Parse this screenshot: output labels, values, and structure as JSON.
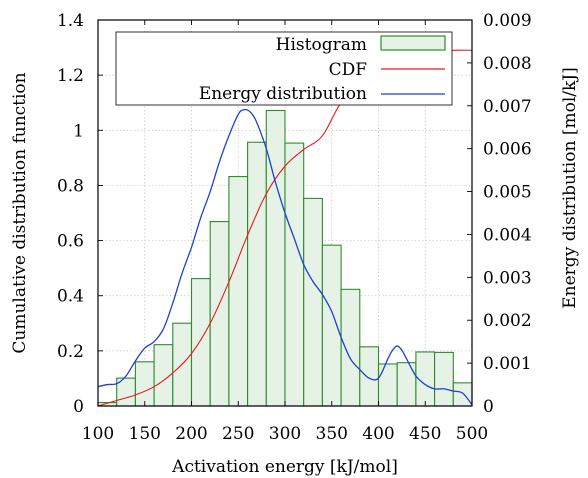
{
  "chart_data": {
    "type": "bar",
    "title": "",
    "xlabel": "Activation energy [kJ/mol]",
    "ylabel_left": "Cumulative distribution function",
    "ylabel_right": "Energy distribution [mol/kJ]",
    "xlim": [
      100,
      500
    ],
    "ylim_left": [
      0,
      1.4
    ],
    "ylim_right": [
      0,
      0.009
    ],
    "grid": true,
    "legend_position": "top-right",
    "xticks": [
      "100",
      "150",
      "200",
      "250",
      "300",
      "350",
      "400",
      "450",
      "500"
    ],
    "yticks_left": [
      "0",
      "0.2",
      "0.4",
      "0.6",
      "0.8",
      "1",
      "1.2",
      "1.4"
    ],
    "yticks_right": [
      "0",
      "0.001",
      "0.002",
      "0.003",
      "0.004",
      "0.005",
      "0.006",
      "0.007",
      "0.008",
      "0.009"
    ],
    "legend": {
      "histogram": "Histogram",
      "cdf": "CDF",
      "energy": "Energy distribution"
    },
    "colors": {
      "histogram": "#2e8b2e",
      "histogram_fill": "#e6f2e6",
      "cdf": "#e31a1c",
      "energy": "#1f3fd6",
      "grid": "#b5b5b5"
    },
    "histogram": {
      "bin_edges": [
        100,
        120,
        140,
        160,
        180,
        200,
        220,
        240,
        260,
        280,
        300,
        320,
        340,
        360,
        380,
        400,
        420,
        440,
        460,
        480,
        500
      ],
      "values_right": [
        8e-05,
        0.00065,
        0.00103,
        0.00143,
        0.00193,
        0.00297,
        0.0043,
        0.00535,
        0.00615,
        0.00689,
        0.00613,
        0.00484,
        0.00375,
        0.00272,
        0.00138,
        0.00098,
        0.00101,
        0.00126,
        0.00125,
        0.00054
      ]
    },
    "cdf": {
      "x": [
        100,
        120,
        140,
        160,
        180,
        200,
        220,
        240,
        260,
        280,
        300,
        320,
        340,
        360,
        380,
        400,
        420,
        440,
        460,
        480,
        500
      ],
      "y": [
        0.0,
        0.02,
        0.04,
        0.07,
        0.12,
        0.19,
        0.3,
        0.45,
        0.62,
        0.77,
        0.87,
        0.93,
        0.98,
        1.1,
        1.15,
        1.18,
        1.23,
        1.26,
        1.28,
        1.29,
        1.29
      ]
    },
    "energy_distribution": {
      "x": [
        100,
        110,
        120,
        130,
        140,
        150,
        160,
        170,
        180,
        190,
        200,
        210,
        220,
        230,
        240,
        250,
        255,
        260,
        265,
        270,
        280,
        290,
        300,
        310,
        320,
        330,
        340,
        350,
        360,
        370,
        380,
        390,
        400,
        410,
        415,
        420,
        425,
        430,
        440,
        450,
        460,
        470,
        480,
        490,
        500
      ],
      "y": [
        0.00045,
        0.0005,
        0.00052,
        0.0007,
        0.00105,
        0.00135,
        0.0015,
        0.0018,
        0.0024,
        0.0031,
        0.0037,
        0.0044,
        0.005,
        0.0057,
        0.0063,
        0.0068,
        0.0069,
        0.0069,
        0.0068,
        0.0066,
        0.006,
        0.0052,
        0.0045,
        0.0039,
        0.0033,
        0.0029,
        0.0026,
        0.0022,
        0.0016,
        0.0011,
        0.00085,
        0.00065,
        0.00065,
        0.0011,
        0.0013,
        0.0014,
        0.0013,
        0.0011,
        0.0007,
        0.0005,
        0.0004,
        0.0004,
        0.00035,
        0.0003,
        3e-05
      ]
    }
  }
}
